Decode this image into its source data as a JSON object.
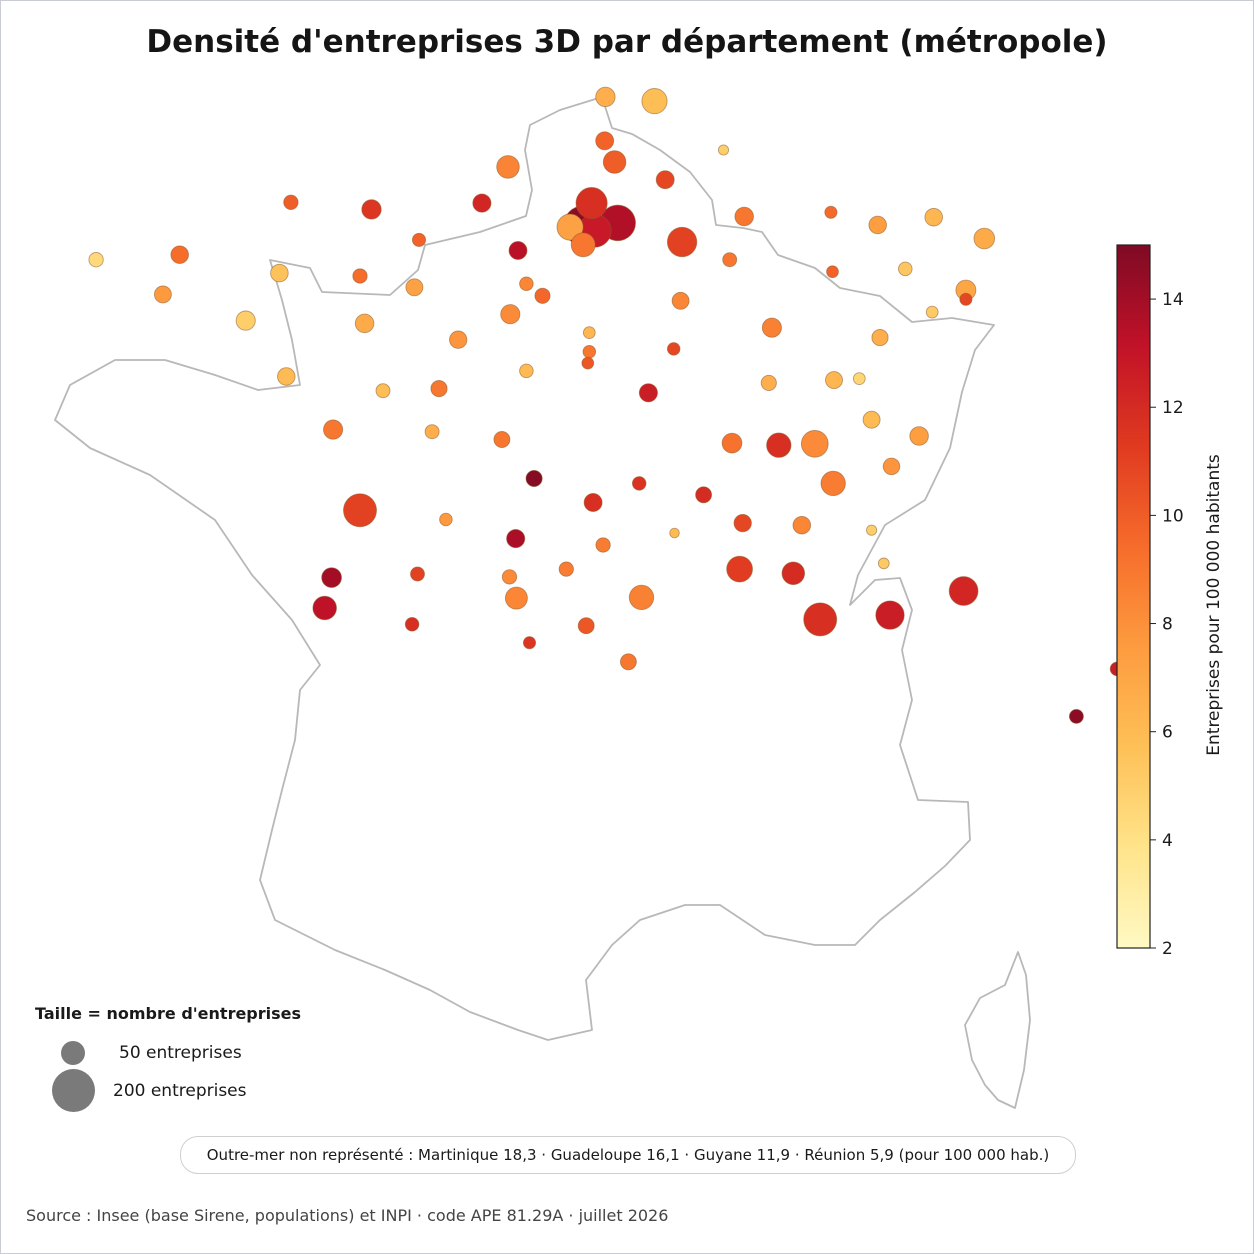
{
  "title": "Densité d'entreprises 3D par département (métropole)",
  "chart_data": {
    "type": "bubble_map",
    "value_label": "Entreprises pour 100 000 habitants",
    "size_label": "nombre d'entreprises",
    "color_scale": {
      "min": 2,
      "max": 15,
      "ticks": [
        2,
        4,
        6,
        8,
        10,
        12,
        14
      ],
      "colors": [
        "#fff9c4",
        "#ffe48a",
        "#fec057",
        "#fd9b3f",
        "#f66c2b",
        "#e03a20",
        "#c11228",
        "#7f0a24"
      ]
    },
    "size_legend": {
      "title": "Taille = nombre d'entreprises",
      "items": [
        {
          "count": 50,
          "label": "50 entreprises"
        },
        {
          "count": 200,
          "label": "200 entreprises"
        }
      ]
    },
    "points": [
      {
        "lon": 2.6,
        "lat": 50.68,
        "value": 6.6,
        "count": 33
      },
      {
        "lon": 3.24,
        "lat": 50.62,
        "value": 5.8,
        "count": 55
      },
      {
        "lon": 2.59,
        "lat": 50.06,
        "value": 9.8,
        "count": 28
      },
      {
        "lon": 4.14,
        "lat": 49.93,
        "value": 5.0,
        "count": 9
      },
      {
        "lon": 1.33,
        "lat": 49.69,
        "value": 8.5,
        "count": 44
      },
      {
        "lon": 2.72,
        "lat": 49.76,
        "value": 10.0,
        "count": 44
      },
      {
        "lon": 3.38,
        "lat": 49.51,
        "value": 10.8,
        "count": 28
      },
      {
        "lon": -1.5,
        "lat": 49.19,
        "value": 10.0,
        "count": 18
      },
      {
        "lon": -0.45,
        "lat": 49.09,
        "value": 11.5,
        "count": 33
      },
      {
        "lon": 0.99,
        "lat": 49.18,
        "value": 12.2,
        "count": 29
      },
      {
        "lon": 2.42,
        "lat": 49.18,
        "value": 11.8,
        "count": 85
      },
      {
        "lon": 2.76,
        "lat": 48.9,
        "value": 13.6,
        "count": 110
      },
      {
        "lon": 2.31,
        "lat": 48.86,
        "value": 14.6,
        "count": 135
      },
      {
        "lon": 2.46,
        "lat": 48.79,
        "value": 12.8,
        "count": 95
      },
      {
        "lon": 2.14,
        "lat": 48.84,
        "value": 7.2,
        "count": 60
      },
      {
        "lon": 3.6,
        "lat": 48.63,
        "value": 11.0,
        "count": 75
      },
      {
        "lon": 2.31,
        "lat": 48.59,
        "value": 9.0,
        "count": 50
      },
      {
        "lon": 1.46,
        "lat": 48.51,
        "value": 13.3,
        "count": 28
      },
      {
        "lon": 0.17,
        "lat": 48.66,
        "value": 9.8,
        "count": 15
      },
      {
        "lon": 4.41,
        "lat": 48.99,
        "value": 9.0,
        "count": 30
      },
      {
        "lon": 5.54,
        "lat": 49.05,
        "value": 9.5,
        "count": 13
      },
      {
        "lon": 6.15,
        "lat": 48.87,
        "value": 7.4,
        "count": 27
      },
      {
        "lon": 6.88,
        "lat": 48.98,
        "value": 6.2,
        "count": 27
      },
      {
        "lon": 7.54,
        "lat": 48.68,
        "value": 6.8,
        "count": 37
      },
      {
        "lon": 4.22,
        "lat": 48.38,
        "value": 9.0,
        "count": 17
      },
      {
        "lon": 5.56,
        "lat": 48.21,
        "value": 9.8,
        "count": 12
      },
      {
        "lon": 6.51,
        "lat": 48.25,
        "value": 5.4,
        "count": 16
      },
      {
        "lon": 7.3,
        "lat": 47.95,
        "value": 7.0,
        "count": 35
      },
      {
        "lon": -4.04,
        "lat": 48.38,
        "value": 4.4,
        "count": 18
      },
      {
        "lon": -2.95,
        "lat": 48.45,
        "value": 9.4,
        "count": 27
      },
      {
        "lon": -3.17,
        "lat": 47.89,
        "value": 7.6,
        "count": 25
      },
      {
        "lon": -1.65,
        "lat": 48.19,
        "value": 5.6,
        "count": 27
      },
      {
        "lon": -2.09,
        "lat": 47.52,
        "value": 5.0,
        "count": 32
      },
      {
        "lon": -0.6,
        "lat": 48.15,
        "value": 9.4,
        "count": 18
      },
      {
        "lon": 0.11,
        "lat": 47.99,
        "value": 7.2,
        "count": 25
      },
      {
        "lon": -0.54,
        "lat": 47.48,
        "value": 6.8,
        "count": 30
      },
      {
        "lon": 1.36,
        "lat": 47.61,
        "value": 8.2,
        "count": 32
      },
      {
        "lon": 0.68,
        "lat": 47.25,
        "value": 7.8,
        "count": 26
      },
      {
        "lon": 1.78,
        "lat": 47.87,
        "value": 9.6,
        "count": 20
      },
      {
        "lon": 2.39,
        "lat": 47.35,
        "value": 6.2,
        "count": 12
      },
      {
        "lon": 1.57,
        "lat": 48.04,
        "value": 8.4,
        "count": 16
      },
      {
        "lon": 2.39,
        "lat": 47.08,
        "value": 9.0,
        "count": 14
      },
      {
        "lon": 3.58,
        "lat": 47.8,
        "value": 8.4,
        "count": 25
      },
      {
        "lon": 4.77,
        "lat": 47.42,
        "value": 8.6,
        "count": 32
      },
      {
        "lon": 3.49,
        "lat": 47.12,
        "value": 10.8,
        "count": 14
      },
      {
        "lon": 4.73,
        "lat": 46.64,
        "value": 6.6,
        "count": 20
      },
      {
        "lon": 5.58,
        "lat": 46.68,
        "value": 6.2,
        "count": 25
      },
      {
        "lon": 6.18,
        "lat": 47.28,
        "value": 6.6,
        "count": 23
      },
      {
        "lon": 6.86,
        "lat": 47.64,
        "value": 5.2,
        "count": 12
      },
      {
        "lon": 7.3,
        "lat": 47.82,
        "value": 10.8,
        "count": 13
      },
      {
        "lon": 5.91,
        "lat": 46.7,
        "value": 4.6,
        "count": 12
      },
      {
        "lon": -1.56,
        "lat": 46.73,
        "value": 6.0,
        "count": 27
      },
      {
        "lon": -0.3,
        "lat": 46.53,
        "value": 5.8,
        "count": 17
      },
      {
        "lon": 0.43,
        "lat": 46.56,
        "value": 9.0,
        "count": 23
      },
      {
        "lon": 1.57,
        "lat": 46.81,
        "value": 6.0,
        "count": 16
      },
      {
        "lon": 2.37,
        "lat": 46.92,
        "value": 10.2,
        "count": 12
      },
      {
        "lon": 3.16,
        "lat": 46.5,
        "value": 12.6,
        "count": 29
      },
      {
        "lon": -0.95,
        "lat": 45.98,
        "value": 9.0,
        "count": 32
      },
      {
        "lon": 0.34,
        "lat": 45.95,
        "value": 6.6,
        "count": 17
      },
      {
        "lon": 1.25,
        "lat": 45.84,
        "value": 9.0,
        "count": 22
      },
      {
        "lon": 4.25,
        "lat": 45.79,
        "value": 9.2,
        "count": 34
      },
      {
        "lon": 4.86,
        "lat": 45.76,
        "value": 11.8,
        "count": 52
      },
      {
        "lon": 5.33,
        "lat": 45.78,
        "value": 8.2,
        "count": 62
      },
      {
        "lon": 6.07,
        "lat": 46.12,
        "value": 6.0,
        "count": 25
      },
      {
        "lon": 6.69,
        "lat": 45.89,
        "value": 7.4,
        "count": 30
      },
      {
        "lon": 6.33,
        "lat": 45.46,
        "value": 7.8,
        "count": 24
      },
      {
        "lon": 5.57,
        "lat": 45.22,
        "value": 8.8,
        "count": 52
      },
      {
        "lon": -0.6,
        "lat": 44.84,
        "value": 11.0,
        "count": 95
      },
      {
        "lon": 1.67,
        "lat": 45.29,
        "value": 14.8,
        "count": 23
      },
      {
        "lon": 2.44,
        "lat": 44.95,
        "value": 11.8,
        "count": 28
      },
      {
        "lon": 3.04,
        "lat": 45.22,
        "value": 11.6,
        "count": 16
      },
      {
        "lon": 3.88,
        "lat": 45.06,
        "value": 12.0,
        "count": 22
      },
      {
        "lon": 4.39,
        "lat": 44.66,
        "value": 10.8,
        "count": 26
      },
      {
        "lon": 5.16,
        "lat": 44.63,
        "value": 8.4,
        "count": 27
      },
      {
        "lon": 6.07,
        "lat": 44.56,
        "value": 5.0,
        "count": 9
      },
      {
        "lon": 0.52,
        "lat": 44.71,
        "value": 7.6,
        "count": 14
      },
      {
        "lon": 1.43,
        "lat": 44.44,
        "value": 13.8,
        "count": 29
      },
      {
        "lon": 2.57,
        "lat": 44.35,
        "value": 8.8,
        "count": 18
      },
      {
        "lon": 3.5,
        "lat": 44.52,
        "value": 6.0,
        "count": 8
      },
      {
        "lon": 4.35,
        "lat": 44.01,
        "value": 11.2,
        "count": 58
      },
      {
        "lon": 5.05,
        "lat": 43.95,
        "value": 12.0,
        "count": 44
      },
      {
        "lon": 6.23,
        "lat": 44.09,
        "value": 5.2,
        "count": 10
      },
      {
        "lon": 7.27,
        "lat": 43.7,
        "value": 12.2,
        "count": 72
      },
      {
        "lon": -0.97,
        "lat": 43.89,
        "value": 14.0,
        "count": 34
      },
      {
        "lon": 0.15,
        "lat": 43.94,
        "value": 11.0,
        "count": 17
      },
      {
        "lon": 1.35,
        "lat": 43.9,
        "value": 8.2,
        "count": 18
      },
      {
        "lon": 2.09,
        "lat": 44.01,
        "value": 8.8,
        "count": 18
      },
      {
        "lon": 3.07,
        "lat": 43.61,
        "value": 8.6,
        "count": 52
      },
      {
        "lon": 1.44,
        "lat": 43.6,
        "value": 8.4,
        "count": 42
      },
      {
        "lon": 5.4,
        "lat": 43.3,
        "value": 11.8,
        "count": 95
      },
      {
        "lon": 6.31,
        "lat": 43.36,
        "value": 12.6,
        "count": 70
      },
      {
        "lon": -1.06,
        "lat": 43.46,
        "value": 13.2,
        "count": 48
      },
      {
        "lon": 0.08,
        "lat": 43.23,
        "value": 11.8,
        "count": 16
      },
      {
        "lon": 1.61,
        "lat": 42.97,
        "value": 11.5,
        "count": 13
      },
      {
        "lon": 2.35,
        "lat": 43.21,
        "value": 10.2,
        "count": 22
      },
      {
        "lon": 2.9,
        "lat": 42.7,
        "value": 9.0,
        "count": 22
      },
      {
        "lon": 9.27,
        "lat": 42.6,
        "value": 12.6,
        "count": 16
      },
      {
        "lon": 8.74,
        "lat": 41.93,
        "value": 14.6,
        "count": 17
      }
    ]
  },
  "note": "Outre-mer non représenté : Martinique 18,3 · Guadeloupe 16,1 · Guyane 11,9 · Réunion 5,9 (pour 100 000 hab.)",
  "source": "Source : Insee (base Sirene, populations) et INPI · code APE 81.29A · juillet 2026"
}
